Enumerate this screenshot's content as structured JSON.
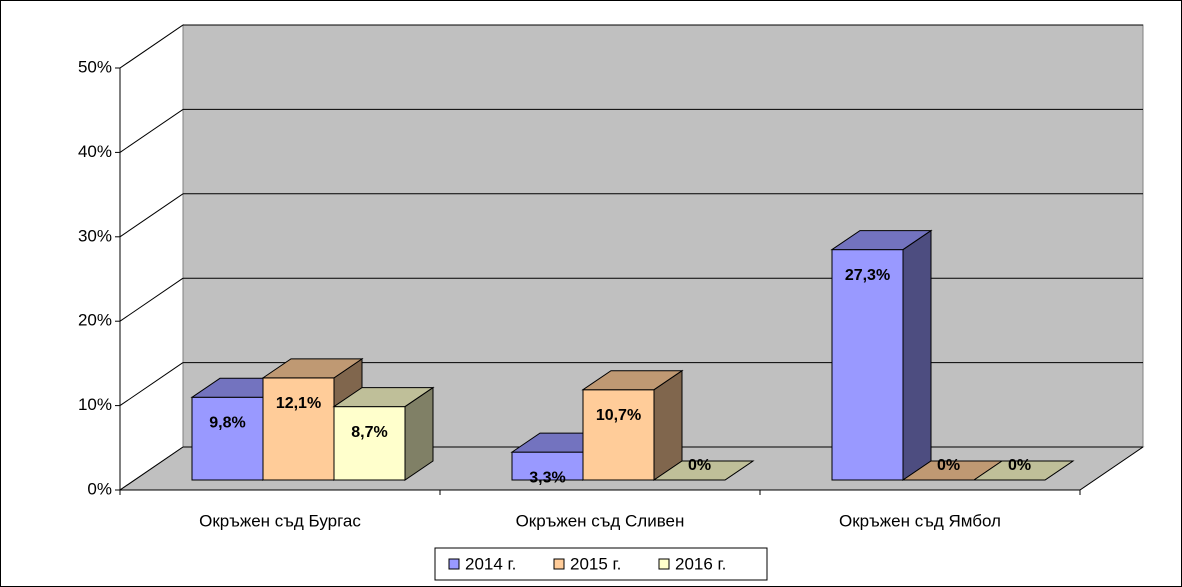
{
  "chart_data": {
    "type": "bar3d",
    "categories": [
      "Окръжен съд Бургас",
      "Окръжен съд Сливен",
      "Окръжен съд Ямбол"
    ],
    "series": [
      {
        "name": "2014 г.",
        "color": "#9999ff",
        "values": [
          9.8,
          3.3,
          27.3
        ],
        "value_labels": [
          "9,8%",
          "3,3%",
          "27,3%"
        ]
      },
      {
        "name": "2015 г.",
        "color": "#ffcc99",
        "values": [
          12.1,
          10.7,
          0
        ],
        "value_labels": [
          "12,1%",
          "10,7%",
          "0%"
        ]
      },
      {
        "name": "2016 г.",
        "color": "#ffffcc",
        "values": [
          8.7,
          0,
          0
        ],
        "value_labels": [
          "8,7%",
          "0%",
          "0%"
        ]
      }
    ],
    "ylim": [
      0,
      50
    ],
    "yticks": [
      {
        "value": 0,
        "label": "0%"
      },
      {
        "value": 10,
        "label": "10%"
      },
      {
        "value": 20,
        "label": "20%"
      },
      {
        "value": 30,
        "label": "30%"
      },
      {
        "value": 40,
        "label": "40%"
      },
      {
        "value": 50,
        "label": "50%"
      }
    ],
    "grid": true,
    "legend": "bottom"
  }
}
